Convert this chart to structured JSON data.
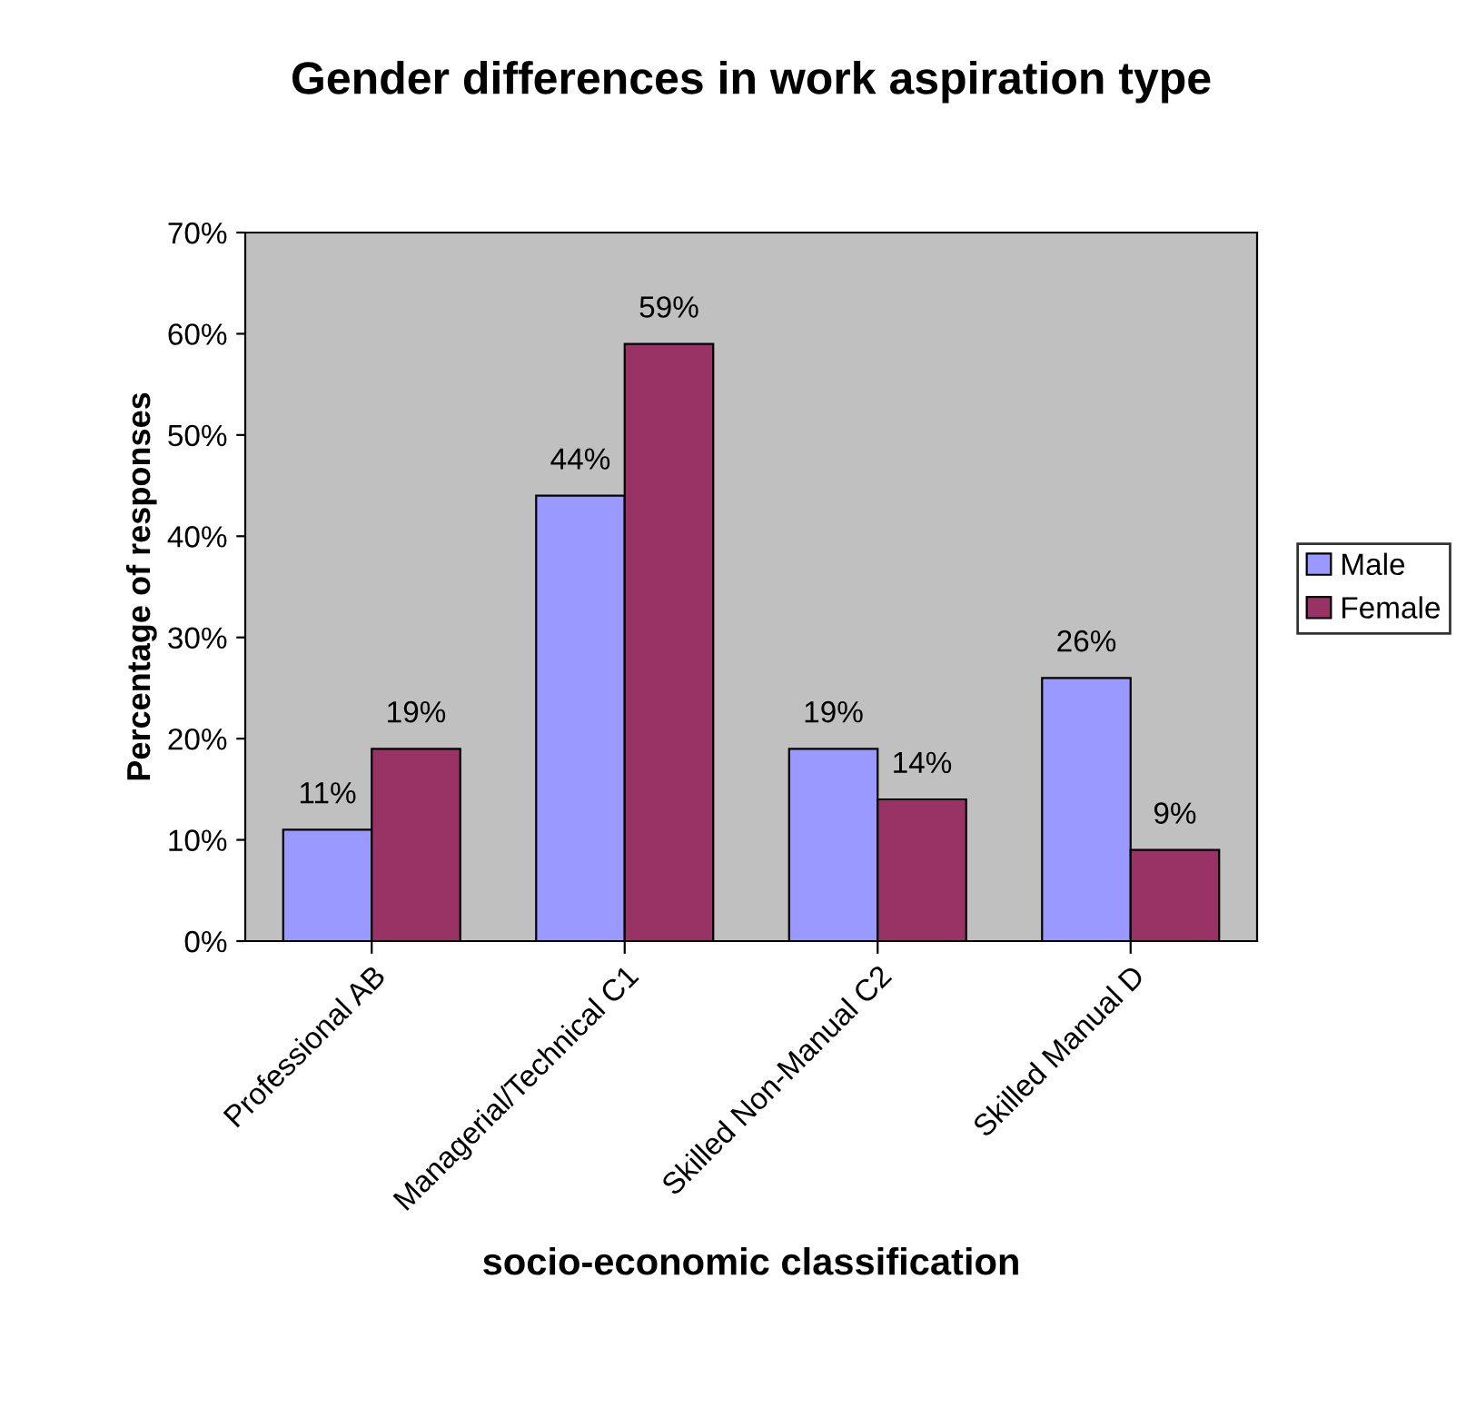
{
  "chart_data": {
    "type": "bar",
    "title": "Gender differences in work aspiration type",
    "xlabel": "socio-economic classification",
    "ylabel": "Percentage of responses",
    "categories": [
      "Professional AB",
      "Managerial/Technical C1",
      "Skilled Non-Manual C2",
      "Skilled Manual D"
    ],
    "series": [
      {
        "name": "Male",
        "color": "#9999ff",
        "values": [
          11,
          44,
          19,
          26
        ],
        "value_labels": [
          "11%",
          "44%",
          "19%",
          "26%"
        ]
      },
      {
        "name": "Female",
        "color": "#993366",
        "values": [
          19,
          59,
          14,
          9
        ],
        "value_labels": [
          "19%",
          "59%",
          "14%",
          "9%"
        ]
      }
    ],
    "ylim": [
      0,
      70
    ],
    "yticks": [
      {
        "value": 0,
        "label": "0%"
      },
      {
        "value": 10,
        "label": "10%"
      },
      {
        "value": 20,
        "label": "20%"
      },
      {
        "value": 30,
        "label": "30%"
      },
      {
        "value": 40,
        "label": "40%"
      },
      {
        "value": 50,
        "label": "50%"
      },
      {
        "value": 60,
        "label": "60%"
      },
      {
        "value": 70,
        "label": "70%"
      }
    ],
    "grid": false,
    "legend": "right"
  }
}
